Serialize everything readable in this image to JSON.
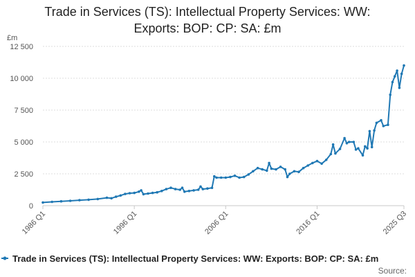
{
  "chart_data": {
    "type": "line",
    "title_lines": [
      "Trade in Services (TS): Intellectual Property Services: WW:",
      "Exports: BOP: CP: SA: £m"
    ],
    "unit_label": "£m",
    "ylim": [
      0,
      12500
    ],
    "yticks": [
      0,
      2500,
      5000,
      7500,
      10000,
      12500
    ],
    "ytick_labels": [
      "0",
      "2 500",
      "5 000",
      "7 500",
      "10 000",
      "12 500"
    ],
    "xticks": [
      {
        "label": "1986 Q1",
        "t": 1986.0
      },
      {
        "label": "1996 Q1",
        "t": 1996.0
      },
      {
        "label": "2006 Q1",
        "t": 2006.0
      },
      {
        "label": "2016 Q1",
        "t": 2016.0
      },
      {
        "label": "2025 Q3",
        "t": 2025.5
      }
    ],
    "series": [
      {
        "name": "Trade in Services (TS): Intellectual Property Services: WW: Exports: BOP: CP: SA: £m",
        "color": "#1f78b4",
        "points": [
          [
            1986.0,
            250
          ],
          [
            1987.0,
            300
          ],
          [
            1988.0,
            340
          ],
          [
            1989.0,
            380
          ],
          [
            1990.0,
            430
          ],
          [
            1991.0,
            470
          ],
          [
            1992.0,
            520
          ],
          [
            1993.0,
            620
          ],
          [
            1993.5,
            580
          ],
          [
            1994.0,
            700
          ],
          [
            1994.5,
            800
          ],
          [
            1995.0,
            920
          ],
          [
            1995.5,
            980
          ],
          [
            1996.0,
            1000
          ],
          [
            1996.5,
            1100
          ],
          [
            1996.75,
            1200
          ],
          [
            1997.0,
            900
          ],
          [
            1997.5,
            950
          ],
          [
            1998.0,
            1000
          ],
          [
            1998.5,
            1050
          ],
          [
            1999.0,
            1150
          ],
          [
            1999.5,
            1300
          ],
          [
            2000.0,
            1400
          ],
          [
            2000.5,
            1300
          ],
          [
            2001.0,
            1250
          ],
          [
            2001.25,
            1400
          ],
          [
            2001.5,
            1100
          ],
          [
            2002.0,
            1150
          ],
          [
            2002.5,
            1200
          ],
          [
            2003.0,
            1250
          ],
          [
            2003.25,
            1500
          ],
          [
            2003.5,
            1300
          ],
          [
            2004.0,
            1350
          ],
          [
            2004.5,
            1400
          ],
          [
            2004.75,
            2300
          ],
          [
            2005.0,
            2200
          ],
          [
            2005.5,
            2200
          ],
          [
            2006.0,
            2200
          ],
          [
            2006.5,
            2250
          ],
          [
            2007.0,
            2350
          ],
          [
            2007.5,
            2200
          ],
          [
            2008.0,
            2250
          ],
          [
            2008.5,
            2450
          ],
          [
            2009.0,
            2700
          ],
          [
            2009.5,
            2950
          ],
          [
            2010.0,
            2850
          ],
          [
            2010.5,
            2750
          ],
          [
            2010.75,
            3350
          ],
          [
            2011.0,
            2900
          ],
          [
            2011.5,
            2850
          ],
          [
            2012.0,
            3050
          ],
          [
            2012.5,
            2850
          ],
          [
            2012.75,
            2250
          ],
          [
            2013.0,
            2500
          ],
          [
            2013.5,
            2700
          ],
          [
            2014.0,
            2650
          ],
          [
            2014.5,
            2950
          ],
          [
            2015.0,
            3150
          ],
          [
            2015.5,
            3350
          ],
          [
            2016.0,
            3500
          ],
          [
            2016.5,
            3300
          ],
          [
            2017.0,
            3600
          ],
          [
            2017.5,
            4050
          ],
          [
            2017.75,
            4800
          ],
          [
            2018.0,
            4100
          ],
          [
            2018.5,
            4450
          ],
          [
            2019.0,
            5300
          ],
          [
            2019.25,
            4900
          ],
          [
            2019.5,
            5000
          ],
          [
            2020.0,
            5000
          ],
          [
            2020.25,
            4400
          ],
          [
            2020.5,
            4500
          ],
          [
            2021.0,
            3950
          ],
          [
            2021.25,
            4650
          ],
          [
            2021.5,
            4500
          ],
          [
            2021.75,
            5850
          ],
          [
            2022.0,
            4600
          ],
          [
            2022.25,
            5900
          ],
          [
            2022.5,
            6500
          ],
          [
            2023.0,
            6700
          ],
          [
            2023.25,
            6250
          ],
          [
            2023.75,
            6350
          ],
          [
            2024.0,
            8700
          ],
          [
            2024.25,
            9700
          ],
          [
            2024.5,
            10150
          ],
          [
            2024.75,
            10600
          ],
          [
            2025.0,
            9250
          ],
          [
            2025.25,
            10350
          ],
          [
            2025.5,
            11000
          ]
        ]
      }
    ],
    "legend_label": "Trade in Services (TS): Intellectual Property Services: WW: Exports: BOP: CP: SA: £m",
    "source_label": "Source:"
  }
}
